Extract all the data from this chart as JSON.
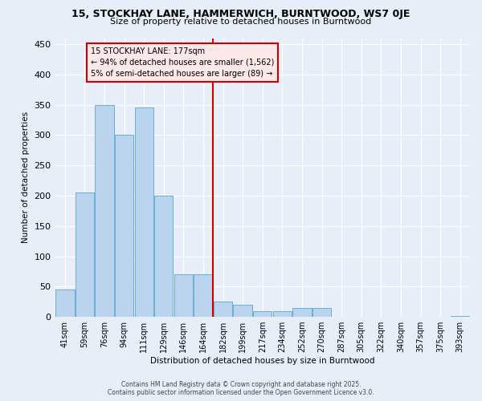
{
  "title": "15, STOCKHAY LANE, HAMMERWICH, BURNTWOOD, WS7 0JE",
  "subtitle": "Size of property relative to detached houses in Burntwood",
  "xlabel": "Distribution of detached houses by size in Burntwood",
  "ylabel": "Number of detached properties",
  "categories": [
    "41sqm",
    "59sqm",
    "76sqm",
    "94sqm",
    "111sqm",
    "129sqm",
    "146sqm",
    "164sqm",
    "182sqm",
    "199sqm",
    "217sqm",
    "234sqm",
    "252sqm",
    "270sqm",
    "287sqm",
    "305sqm",
    "322sqm",
    "340sqm",
    "357sqm",
    "375sqm",
    "393sqm"
  ],
  "values": [
    45,
    205,
    350,
    300,
    345,
    200,
    70,
    70,
    25,
    20,
    10,
    10,
    15,
    15,
    0,
    0,
    0,
    0,
    0,
    0,
    2
  ],
  "bar_color": "#bad4ee",
  "bar_edge_color": "#6aaed6",
  "annotation_title": "15 STOCKHAY LANE: 177sqm",
  "annotation_line1": "← 94% of detached houses are smaller (1,562)",
  "annotation_line2": "5% of semi-detached houses are larger (89) →",
  "vline_color": "#cc0000",
  "ylim": [
    0,
    460
  ],
  "yticks": [
    0,
    50,
    100,
    150,
    200,
    250,
    300,
    350,
    400,
    450
  ],
  "background_color": "#e8eef8",
  "grid_color": "#ffffff",
  "footer_line1": "Contains HM Land Registry data © Crown copyright and database right 2025.",
  "footer_line2": "Contains public sector information licensed under the Open Government Licence v3.0."
}
